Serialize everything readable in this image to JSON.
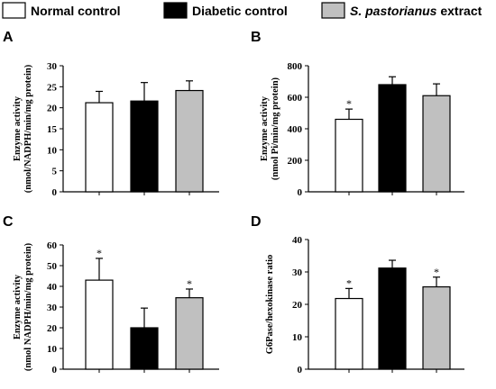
{
  "legend": [
    {
      "label": "Normal control",
      "color": "#ffffff"
    },
    {
      "label": "Diabetic control",
      "color": "#000000"
    },
    {
      "label": "S. pastorianus extract",
      "color": "#c0c0c0",
      "italic_part": "S. pastorianus",
      "rest": " extract"
    }
  ],
  "chart_data": [
    {
      "panel": "A",
      "type": "bar",
      "categories": [
        "Normal control",
        "Diabetic control",
        "S. pastorianus extract"
      ],
      "values": [
        21.2,
        21.6,
        24.1
      ],
      "errors": [
        2.7,
        4.4,
        2.3
      ],
      "significant": [
        false,
        false,
        false
      ],
      "ylabel_lines": [
        "Enzyme activity",
        "(nmol/NADPH/min/mg protein)"
      ],
      "ylim": [
        0,
        30
      ],
      "yticks": [
        0,
        5,
        10,
        15,
        20,
        25,
        30
      ],
      "grid": false
    },
    {
      "panel": "B",
      "type": "bar",
      "categories": [
        "Normal control",
        "Diabetic control",
        "S. pastorianus extract"
      ],
      "values": [
        460,
        680,
        610
      ],
      "errors": [
        65,
        50,
        75
      ],
      "significant": [
        true,
        false,
        false
      ],
      "ylabel_lines": [
        "Enzyme activity",
        "(nmol Pi/min/mg protein)"
      ],
      "ylim": [
        0,
        800
      ],
      "yticks": [
        0,
        200,
        400,
        600,
        800
      ],
      "grid": false
    },
    {
      "panel": "C",
      "type": "bar",
      "categories": [
        "Normal control",
        "Diabetic control",
        "S. pastorianus extract"
      ],
      "values": [
        43,
        20,
        34.5
      ],
      "errors": [
        10.5,
        9.5,
        4.2
      ],
      "significant": [
        true,
        false,
        true
      ],
      "ylabel_lines": [
        "Enzyme activity",
        "(nmol NADPH/min/mg protein)"
      ],
      "ylim": [
        0,
        60
      ],
      "yticks": [
        0,
        10,
        20,
        30,
        40,
        50,
        60
      ],
      "grid": false
    },
    {
      "panel": "D",
      "type": "bar",
      "categories": [
        "Normal control",
        "Diabetic control",
        "S. pastorianus extract"
      ],
      "values": [
        21.8,
        31.2,
        25.4
      ],
      "errors": [
        3.1,
        2.4,
        3.0
      ],
      "significant": [
        true,
        false,
        true
      ],
      "ylabel_lines": [
        "G6Pase/hexokinase ratio"
      ],
      "ylim": [
        0,
        40
      ],
      "yticks": [
        0,
        10,
        20,
        30,
        40
      ],
      "grid": false
    }
  ]
}
